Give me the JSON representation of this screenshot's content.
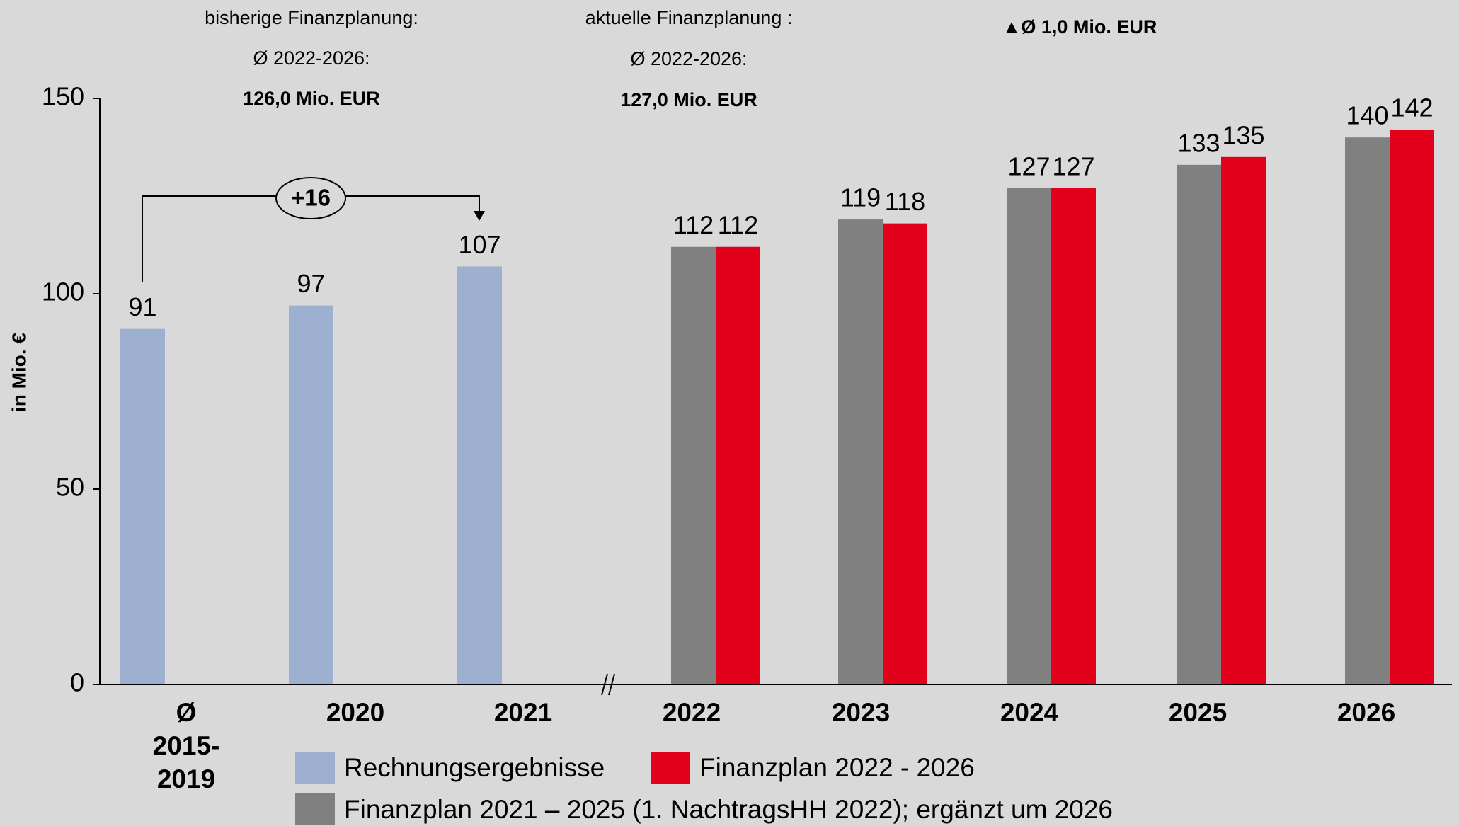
{
  "chart_data": {
    "type": "bar",
    "y_label": "in Mio. €",
    "categories": [
      "Ø 2015-2019",
      "2020",
      "2021",
      "2022",
      "2023",
      "2024",
      "2025",
      "2026"
    ],
    "series": [
      {
        "name": "Rechnungsergebnisse",
        "color": "#9db0d0",
        "values": [
          91,
          97,
          107,
          null,
          null,
          null,
          null,
          null
        ]
      },
      {
        "name": "Finanzplan 2021 – 2025 (1. NachtragsHH 2022); ergänzt um 2026",
        "color": "#808080",
        "values": [
          null,
          null,
          null,
          112,
          119,
          127,
          133,
          140
        ]
      },
      {
        "name": "Finanzplan 2022 - 2026",
        "color": "#e2001a",
        "values": [
          null,
          null,
          null,
          112,
          118,
          127,
          135,
          142
        ]
      }
    ],
    "ylim": [
      0,
      150
    ],
    "yticks": [
      0,
      50,
      100,
      150
    ],
    "annotations": {
      "previous": [
        "bisherige Finanzplanung:",
        "Ø 2022-2026:",
        "126,0 Mio. EUR"
      ],
      "current": [
        "aktuelle Finanzplanung :",
        "Ø 2022-2026:",
        "127,0 Mio. EUR"
      ],
      "difference": "▲Ø 1,0 Mio. EUR",
      "increase": "+16"
    }
  }
}
